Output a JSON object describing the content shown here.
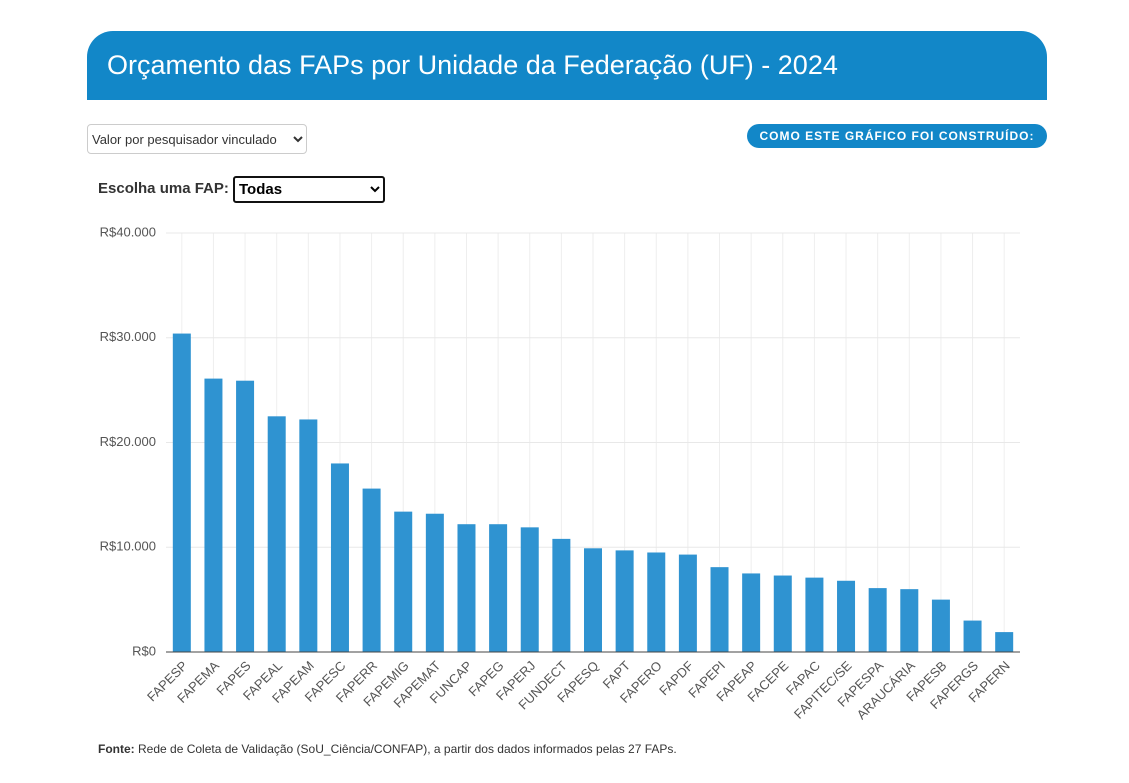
{
  "header": {
    "title": "Orçamento das FAPs por Unidade da Federação (UF) - 2024"
  },
  "controls": {
    "metric_select": "Valor por pesquisador vinculado",
    "method_button": "COMO ESTE GRÁFICO FOI CONSTRUÍDO:",
    "fap_label": "Escolha uma FAP:",
    "fap_select": "Todas"
  },
  "chart_data": {
    "type": "bar",
    "color": "#2f93d1",
    "grid": true,
    "categories": [
      "FAPESP",
      "FAPEMA",
      "FAPES",
      "FAPEAL",
      "FAPEAM",
      "FAPESC",
      "FAPERR",
      "FAPEMIG",
      "FAPEMAT",
      "FUNCAP",
      "FAPEG",
      "FAPERJ",
      "FUNDECT",
      "FAPESQ",
      "FAPT",
      "FAPERO",
      "FAPDF",
      "FAPEPI",
      "FAPEAP",
      "FACEPE",
      "FAPAC",
      "FAPITEC/SE",
      "FAPESPA",
      "ARAUCÁRIA",
      "FAPESB",
      "FAPERGS",
      "FAPERN"
    ],
    "values": [
      30400,
      26100,
      25900,
      22500,
      22200,
      18000,
      15600,
      13400,
      13200,
      12200,
      12200,
      11900,
      10800,
      9900,
      9700,
      9500,
      9300,
      8100,
      7500,
      7300,
      7100,
      6800,
      6100,
      6000,
      5000,
      3000,
      1900
    ],
    "ylim": [
      0,
      40000
    ],
    "yticks": [
      {
        "value": 0,
        "label": "R$0"
      },
      {
        "value": 10000,
        "label": "R$10.000"
      },
      {
        "value": 20000,
        "label": "R$20.000"
      },
      {
        "value": 30000,
        "label": "R$30.000"
      },
      {
        "value": 40000,
        "label": "R$40.000"
      }
    ]
  },
  "footer": {
    "label": "Fonte:",
    "text": "Rede de Coleta de Validação (SoU_Ciência/CONFAP), a partir dos dados informados pelas 27 FAPs."
  }
}
